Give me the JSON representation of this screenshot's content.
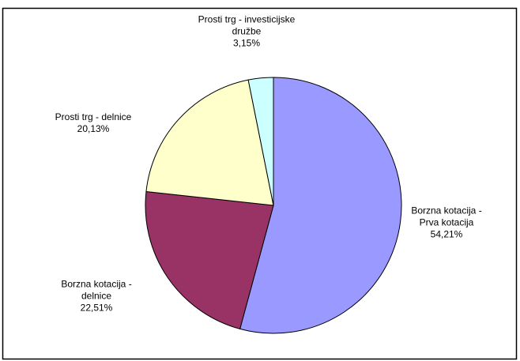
{
  "chart_data": {
    "type": "pie",
    "categories": [
      "Borzna kotacija - Prva kotacija",
      "Borzna kotacija - delnice",
      "Prosti trg - delnice",
      "Prosti trg - investicijske družbe"
    ],
    "values": [
      54.21,
      22.51,
      20.13,
      3.15
    ],
    "value_labels": [
      "54,21%",
      "22,51%",
      "20,13%",
      "3,15%"
    ],
    "colors": [
      "#9999ff",
      "#993366",
      "#ffffcc",
      "#ccffff"
    ]
  }
}
